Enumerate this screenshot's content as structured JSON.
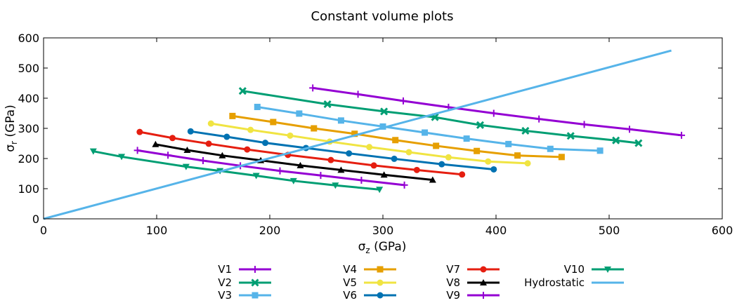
{
  "chart_data": {
    "type": "line",
    "title": "Constant volume plots",
    "xlabel": {
      "base": "σ",
      "sub": "z",
      "unit": " (GPa)"
    },
    "ylabel": {
      "base": "σ",
      "sub": "r",
      "unit": " (GPa)"
    },
    "xlim": [
      0,
      600
    ],
    "ylim": [
      0,
      600
    ],
    "xticks": [
      "0",
      "100",
      "200",
      "300",
      "400",
      "500",
      "600"
    ],
    "yticks": [
      "0",
      "100",
      "200",
      "300",
      "400",
      "500",
      "600"
    ],
    "grid": false,
    "legend_placement": "bottom",
    "series": [
      {
        "name": "V1",
        "color": "#9400d3",
        "marker": "plus",
        "x": [
          238,
          278,
          318,
          358,
          398,
          438,
          478,
          518,
          564
        ],
        "y": [
          434,
          413,
          391,
          370,
          350,
          331,
          313,
          297,
          277
        ]
      },
      {
        "name": "V2",
        "color": "#009e73",
        "marker": "x",
        "x": [
          176,
          251,
          301,
          346,
          386,
          426,
          466,
          506,
          526
        ],
        "y": [
          424,
          380,
          356,
          337,
          311,
          292,
          275,
          260,
          251
        ]
      },
      {
        "name": "V3",
        "color": "#56b4e9",
        "marker": "square",
        "x": [
          189,
          226,
          263,
          300,
          337,
          374,
          411,
          448,
          492
        ],
        "y": [
          371,
          349,
          326,
          306,
          286,
          266,
          248,
          232,
          226
        ]
      },
      {
        "name": "V4",
        "color": "#e69f00",
        "marker": "square",
        "x": [
          167,
          203,
          239,
          275,
          311,
          347,
          383,
          419,
          458
        ],
        "y": [
          341,
          321,
          300,
          282,
          261,
          242,
          225,
          210,
          205
        ]
      },
      {
        "name": "V5",
        "color": "#f0e442",
        "marker": "circle",
        "x": [
          148,
          183,
          218,
          253,
          288,
          323,
          358,
          393,
          428
        ],
        "y": [
          316,
          295,
          276,
          256,
          238,
          221,
          204,
          190,
          184
        ]
      },
      {
        "name": "V6",
        "color": "#0072b2",
        "marker": "circle",
        "x": [
          130,
          162,
          196,
          232,
          270,
          310,
          352,
          398
        ],
        "y": [
          290,
          272,
          252,
          235,
          217,
          199,
          181,
          164
        ]
      },
      {
        "name": "V7",
        "color": "#e51e10",
        "marker": "circle",
        "x": [
          85,
          114,
          146,
          180,
          216,
          254,
          292,
          330,
          370
        ],
        "y": [
          288,
          268,
          249,
          230,
          212,
          195,
          177,
          162,
          147
        ]
      },
      {
        "name": "V8",
        "color": "#000000",
        "marker": "triangle",
        "x": [
          99,
          127,
          158,
          192,
          227,
          263,
          301,
          344
        ],
        "y": [
          247,
          228,
          210,
          194,
          177,
          162,
          146,
          129
        ]
      },
      {
        "name": "V9",
        "color": "#9400d3",
        "marker": "plus",
        "x": [
          83,
          110,
          141,
          174,
          209,
          245,
          281,
          319
        ],
        "y": [
          227,
          211,
          193,
          176,
          159,
          144,
          128,
          112
        ]
      },
      {
        "name": "V10",
        "color": "#009e73",
        "marker": "triangle-down",
        "x": [
          44,
          69,
          126,
          156,
          188,
          221,
          258,
          297
        ],
        "y": [
          224,
          206,
          173,
          159,
          143,
          126,
          111,
          97
        ]
      },
      {
        "name": "Hydrostatic",
        "color": "#56b4e9",
        "marker": "none",
        "x": [
          0,
          555
        ],
        "y": [
          0,
          558
        ]
      }
    ]
  }
}
